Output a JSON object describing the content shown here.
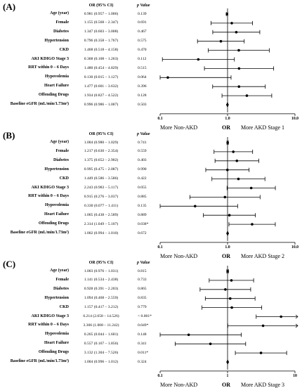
{
  "headers": {
    "or": "OR (95% CI)",
    "p": "p Value"
  },
  "chart_data": [
    {
      "type": "forest",
      "panel": "(A)",
      "x_scale": "log",
      "xlim": [
        0.1,
        10.0
      ],
      "x_ticks": [
        "0.1",
        "1.0",
        "10.0"
      ],
      "x_tick_values": [
        0.1,
        1.0,
        10.0
      ],
      "bottom_left": "More Non-AKD",
      "bottom_center": "OR",
      "bottom_right": "More AKD Stage 1",
      "rows": [
        {
          "label": "Age (year)",
          "or_text": "0.981 (0.957 – 1.006)",
          "p": "0.139",
          "or": 0.981,
          "lo": 0.957,
          "hi": 1.006
        },
        {
          "label": "Female",
          "or_text": "1.155 (0.568 – 2.347)",
          "p": "0.691",
          "or": 1.155,
          "lo": 0.568,
          "hi": 2.347
        },
        {
          "label": "Diabetes",
          "or_text": "1.347 (0.603 – 3.008)",
          "p": "0.467",
          "or": 1.347,
          "lo": 0.603,
          "hi": 3.008
        },
        {
          "label": "Hypertension",
          "or_text": "0.796 (0.358 – 1.767)",
          "p": "0.575",
          "or": 0.796,
          "lo": 0.358,
          "hi": 1.767
        },
        {
          "label": "CKD",
          "or_text": "1.468 (0.518 – 4.158)",
          "p": "0.470",
          "or": 1.468,
          "lo": 0.518,
          "hi": 4.158
        },
        {
          "label": "AKI KDIGO Stage 3",
          "or_text": "0.368 (0.108 – 1.263)",
          "p": "0.112",
          "or": 0.368,
          "lo": 0.108,
          "hi": 1.263
        },
        {
          "label": "RRT within 0 – 6 Days",
          "or_text": "1.480 (0.454 – 4.829)",
          "p": "0.515",
          "or": 1.48,
          "lo": 0.454,
          "hi": 4.829
        },
        {
          "label": "Hypovolemia",
          "or_text": "0.130 (0.015 – 1.127)",
          "p": "0.064",
          "or": 0.13,
          "lo": 0.015,
          "hi": 1.127
        },
        {
          "label": "Heart Failure",
          "or_text": "1.477 (0.601 – 3.632)",
          "p": "0.396",
          "or": 1.477,
          "lo": 0.601,
          "hi": 3.632
        },
        {
          "label": "Offending Drugs",
          "or_text": "1.934 (0.827 – 4.522)",
          "p": "0.128",
          "or": 1.934,
          "lo": 0.827,
          "hi": 4.522
        },
        {
          "label": "Baseline eGFR (mL/min/1.73m²)",
          "or_text": "0.996 (0.986 – 1.007)",
          "p": "0.503",
          "or": 0.996,
          "lo": 0.986,
          "hi": 1.007
        }
      ]
    },
    {
      "type": "forest",
      "panel": "(B)",
      "x_scale": "log",
      "xlim": [
        0.1,
        10.0
      ],
      "x_ticks": [
        "0.1",
        "1.0",
        "10.0"
      ],
      "x_tick_values": [
        0.1,
        1.0,
        10.0
      ],
      "bottom_left": "More Non-AKD",
      "bottom_center": "OR",
      "bottom_right": "More AKD Stage 2",
      "rows": [
        {
          "label": "Age (year)",
          "or_text": "1.004 (0.980 – 1.029)",
          "p": "0.741",
          "or": 1.004,
          "lo": 0.98,
          "hi": 1.029
        },
        {
          "label": "Female",
          "or_text": "1.217 (0.630 – 2.354)",
          "p": "0.559",
          "or": 1.217,
          "lo": 0.63,
          "hi": 2.354
        },
        {
          "label": "Diabetes",
          "or_text": "1.375 (0.652 – 2.902)",
          "p": "0.403",
          "or": 1.375,
          "lo": 0.652,
          "hi": 2.902
        },
        {
          "label": "Hypertension",
          "or_text": "0.995 (0.475 – 2.087)",
          "p": "0.990",
          "or": 0.995,
          "lo": 0.475,
          "hi": 2.087
        },
        {
          "label": "CKD",
          "or_text": "1.449 (0.586 – 3.586)",
          "p": "0.422",
          "or": 1.449,
          "lo": 0.586,
          "hi": 3.586
        },
        {
          "label": "AKI KDIGO Stage 3",
          "or_text": "2.243 (0.983 – 5.117)",
          "p": "0.055",
          "or": 2.243,
          "lo": 0.983,
          "hi": 5.117
        },
        {
          "label": "RRT within 0 – 6 Days",
          "or_text": "0.915 (0.276 – 3.037)",
          "p": "0.885",
          "or": 0.915,
          "lo": 0.276,
          "hi": 3.037
        },
        {
          "label": "Hypovolemia",
          "or_text": "0.330 (0.077 – 1.411)",
          "p": "0.135",
          "or": 0.33,
          "lo": 0.077,
          "hi": 1.411
        },
        {
          "label": "Heart Failure",
          "or_text": "1.065 (0.438 – 2.589)",
          "p": "0.889",
          "or": 1.065,
          "lo": 0.438,
          "hi": 2.589
        },
        {
          "label": "Offending Drugs",
          "or_text": "2.314 (1.049 – 5.107)",
          "p": "0.038*",
          "or": 2.314,
          "lo": 1.049,
          "hi": 5.107
        },
        {
          "label": "Baseline eGFR (mL/min/1.73m²)",
          "or_text": "1.002 (0.994 – 1.010)",
          "p": "0.672",
          "or": 1.002,
          "lo": 0.994,
          "hi": 1.01
        }
      ]
    },
    {
      "type": "forest",
      "panel": "(C)",
      "x_scale": "log",
      "xlim": [
        0.1,
        10
      ],
      "x_ticks": [
        "0.1",
        "1",
        "10"
      ],
      "x_tick_values": [
        0.1,
        1,
        10
      ],
      "bottom_left": "More Non-AKD",
      "bottom_center": "OR",
      "bottom_right": "More AKD Stage 3",
      "rows": [
        {
          "label": "Age (year)",
          "or_text": "1.003 (0.976 – 1.031)",
          "p": "0.815",
          "or": 1.003,
          "lo": 0.976,
          "hi": 1.031
        },
        {
          "label": "Female",
          "or_text": "1.141 (0.534 – 2.438)",
          "p": "0.733",
          "or": 1.141,
          "lo": 0.534,
          "hi": 2.438
        },
        {
          "label": "Diabetes",
          "or_text": "0.928 (0.391 – 2.203)",
          "p": "0.865",
          "or": 0.928,
          "lo": 0.391,
          "hi": 2.203
        },
        {
          "label": "Hypertension",
          "or_text": "1.094 (0.468 – 2.559)",
          "p": "0.835",
          "or": 1.094,
          "lo": 0.468,
          "hi": 2.559
        },
        {
          "label": "CKD",
          "or_text": "1.157 (0.417 – 3.212)",
          "p": "0.779",
          "or": 1.157,
          "lo": 0.417,
          "hi": 3.212
        },
        {
          "label": "AKI KDIGO Stage 3",
          "or_text": "6.214 (2.658 – 14.526)",
          "p": "< 0.001*",
          "or": 6.214,
          "lo": 2.658,
          "hi": 14.526
        },
        {
          "label": "RRT within 0 – 6 Days",
          "or_text": "3.366 (1.008 – 11.242)",
          "p": "0.049*",
          "or": 3.366,
          "lo": 1.008,
          "hi": 11.242
        },
        {
          "label": "Hypovolemia",
          "or_text": "0.265 (0.044 – 1.601)",
          "p": "0.148",
          "or": 0.265,
          "lo": 0.044,
          "hi": 1.601
        },
        {
          "label": "Heart Failure",
          "or_text": "0.557 (0.167 – 1.856)",
          "p": "0.341",
          "or": 0.557,
          "lo": 0.167,
          "hi": 1.856
        },
        {
          "label": "Offending Drugs",
          "or_text": "3.132 (1.304 – 7.526)",
          "p": "0.011*",
          "or": 3.132,
          "lo": 1.304,
          "hi": 7.526
        },
        {
          "label": "Baseline eGFR (mL/min/1.73m²)",
          "or_text": "1.004 (0.996 – 1.012)",
          "p": "0.324",
          "or": 1.004,
          "lo": 0.996,
          "hi": 1.012
        }
      ]
    }
  ]
}
